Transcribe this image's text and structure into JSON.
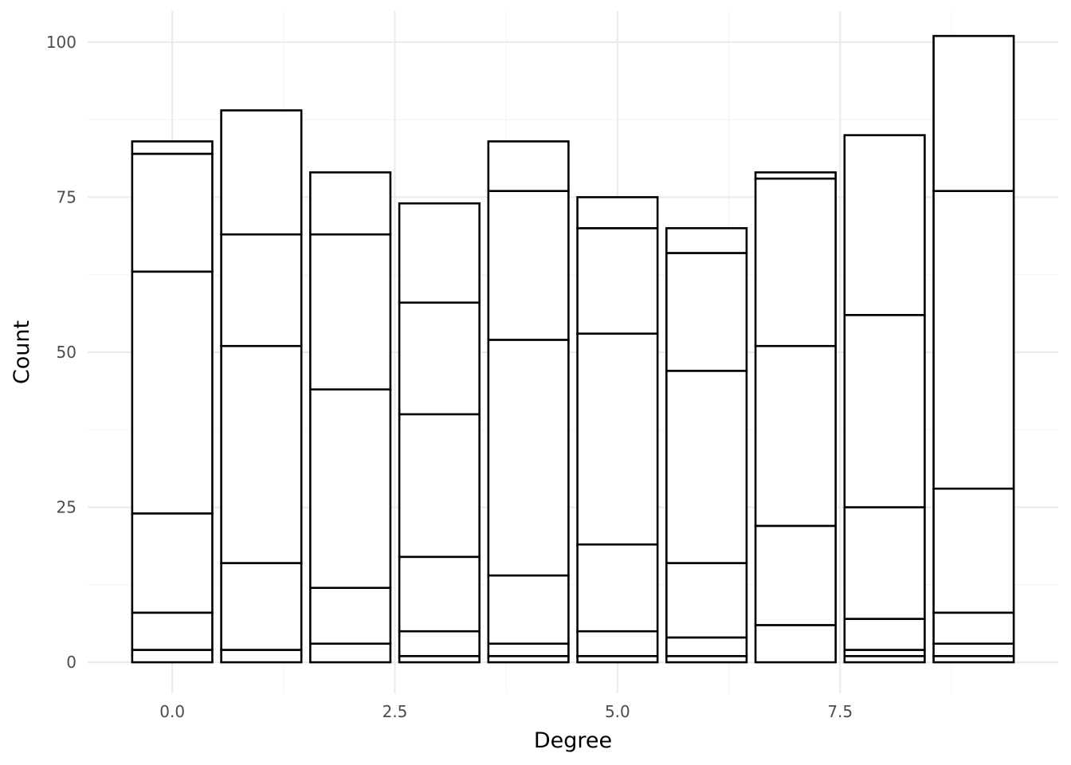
{
  "chart_data": {
    "type": "bar",
    "stacked": true,
    "title": "",
    "xlabel": "Degree",
    "ylabel": "Count",
    "x": [
      0,
      1,
      2,
      3,
      4,
      5,
      6,
      7,
      8,
      9
    ],
    "bar_width": 0.9,
    "xlim": [
      -0.95,
      9.95
    ],
    "ylim": [
      -5,
      105
    ],
    "x_ticks": [
      0,
      2.5,
      5,
      7.5
    ],
    "x_tick_labels": [
      "0.0",
      "2.5",
      "5.0",
      "7.5"
    ],
    "y_ticks": [
      0,
      25,
      50,
      75,
      100
    ],
    "y_tick_labels": [
      "0",
      "25",
      "50",
      "75",
      "100"
    ],
    "x_minor_ticks": [
      1.25,
      3.75,
      6.25,
      8.75
    ],
    "y_minor_ticks": [
      12.5,
      37.5,
      62.5,
      87.5
    ],
    "grid": true,
    "legend": "none",
    "colors": {
      "fill": "#ffffff",
      "outline": "#000000",
      "grid_major": "#ebebeb",
      "grid_minor": "#f4f4f4"
    },
    "stack_boundaries": [
      [
        0,
        2,
        8,
        24,
        63,
        82,
        84
      ],
      [
        0,
        2,
        16,
        51,
        69,
        89
      ],
      [
        0,
        3,
        12,
        44,
        69,
        79
      ],
      [
        0,
        1,
        5,
        17,
        40,
        58,
        74
      ],
      [
        0,
        1,
        3,
        14,
        52,
        76,
        84
      ],
      [
        0,
        1,
        5,
        19,
        53,
        70,
        75
      ],
      [
        0,
        1,
        4,
        16,
        47,
        66,
        70
      ],
      [
        0,
        6,
        22,
        51,
        78,
        79
      ],
      [
        0,
        1,
        2,
        7,
        25,
        56,
        85
      ],
      [
        0,
        1,
        3,
        8,
        28,
        76,
        101
      ]
    ],
    "totals": [
      84,
      89,
      79,
      74,
      84,
      75,
      70,
      79,
      85,
      101
    ]
  }
}
